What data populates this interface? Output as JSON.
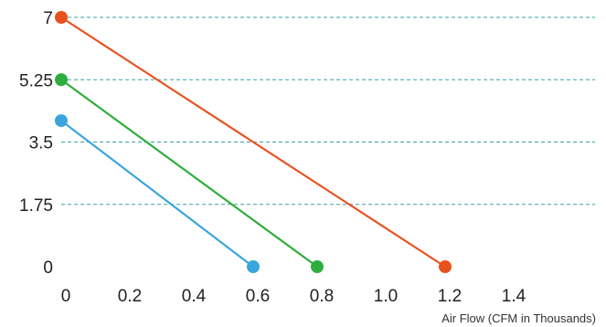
{
  "chart_data": {
    "type": "line",
    "title": "",
    "xlabel": "Air Flow (CFM in Thousands)",
    "ylabel": "",
    "xlim": [
      0,
      1.6
    ],
    "ylim": [
      0,
      7
    ],
    "x_ticks": [
      0,
      0.2,
      0.4,
      0.6,
      0.8,
      1.0,
      1.2,
      1.4
    ],
    "x_tick_labels": [
      "0",
      "0.2",
      "0.4",
      "0.6",
      "0.8",
      "1.0",
      "1.2",
      "1.4"
    ],
    "y_ticks": [
      0,
      1.75,
      3.5,
      5.25,
      7
    ],
    "y_tick_labels": [
      "0",
      "1.75",
      "3.5",
      "5.25",
      "7"
    ],
    "grid": "horizontal dashed",
    "legend": "none",
    "series": [
      {
        "color": "#e8521f",
        "x": [
          0,
          1.2
        ],
        "y": [
          7,
          0
        ]
      },
      {
        "color": "#2fae3f",
        "x": [
          0,
          0.8
        ],
        "y": [
          5.25,
          0
        ]
      },
      {
        "color": "#3aa6dd",
        "x": [
          0,
          0.6
        ],
        "y": [
          4.1,
          0
        ]
      }
    ],
    "baseline_color": "#1f9e9a",
    "gridline_color": "#3a9fa6"
  }
}
